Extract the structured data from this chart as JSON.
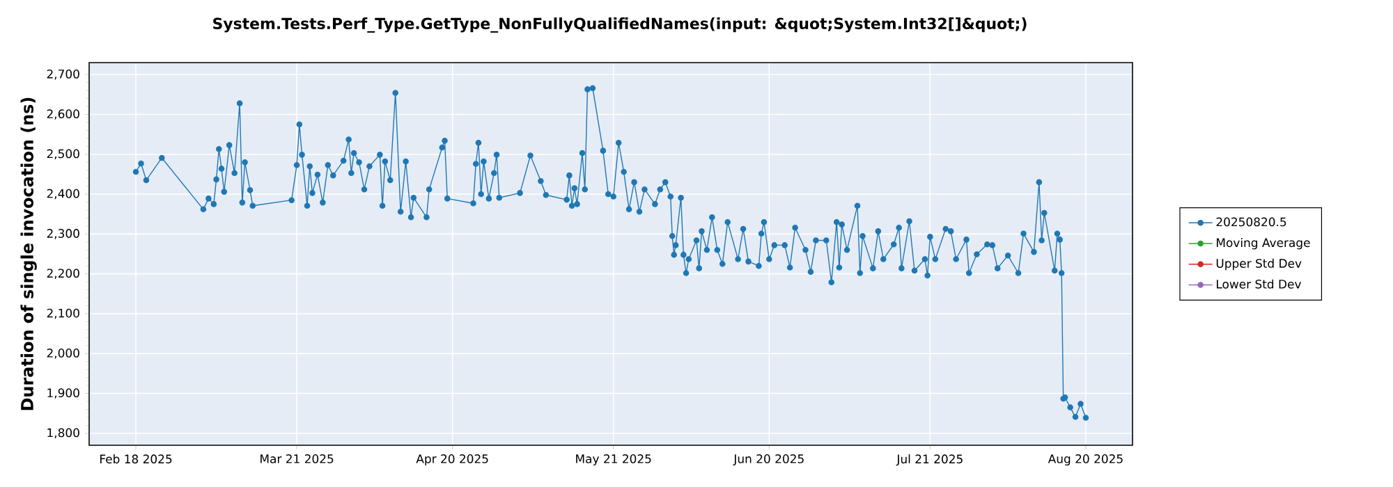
{
  "chart_data": {
    "type": "line",
    "title": "System.Tests.Perf_Type.GetType_NonFullyQualifiedNames(input: &quot;System.Int32[]&quot;)",
    "ylabel": "Duration of single invocation (ns)",
    "xlim": [
      "2025-02-09",
      "2025-08-29"
    ],
    "ylim": [
      1770,
      2730
    ],
    "xticks": [
      {
        "value": "2025-02-18",
        "label": "Feb 18 2025"
      },
      {
        "value": "2025-03-21",
        "label": "Mar 21 2025"
      },
      {
        "value": "2025-04-20",
        "label": "Apr 20 2025"
      },
      {
        "value": "2025-05-21",
        "label": "May 21 2025"
      },
      {
        "value": "2025-06-20",
        "label": "Jun 20 2025"
      },
      {
        "value": "2025-07-21",
        "label": "Jul 21 2025"
      },
      {
        "value": "2025-08-20",
        "label": "Aug 20 2025"
      }
    ],
    "yticks": [
      {
        "value": 1800,
        "label": "1,800"
      },
      {
        "value": 1900,
        "label": "1,900"
      },
      {
        "value": 2000,
        "label": "2,000"
      },
      {
        "value": 2100,
        "label": "2,100"
      },
      {
        "value": 2200,
        "label": "2,200"
      },
      {
        "value": 2300,
        "label": "2,300"
      },
      {
        "value": 2400,
        "label": "2,400"
      },
      {
        "value": 2500,
        "label": "2,500"
      },
      {
        "value": 2600,
        "label": "2,600"
      },
      {
        "value": 2700,
        "label": "2,700"
      }
    ],
    "grid": true,
    "legend": "right",
    "marker": "circle",
    "line_style": "solid",
    "series": [
      {
        "name": "20250820.5",
        "color": "#1f77b4",
        "x": [
          "2025-02-18",
          "2025-02-19",
          "2025-02-20",
          "2025-02-23",
          "2025-03-03",
          "2025-03-04",
          "2025-03-05",
          "2025-03-05T12:00",
          "2025-03-06",
          "2025-03-06T12:00",
          "2025-03-07",
          "2025-03-08",
          "2025-03-09",
          "2025-03-10",
          "2025-03-10T12:00",
          "2025-03-11",
          "2025-03-12",
          "2025-03-12T12:00",
          "2025-03-20",
          "2025-03-21",
          "2025-03-21T12:00",
          "2025-03-22",
          "2025-03-23",
          "2025-03-23T12:00",
          "2025-03-24",
          "2025-03-25",
          "2025-03-26",
          "2025-03-27",
          "2025-03-28",
          "2025-03-30",
          "2025-03-31",
          "2025-03-31T12:00",
          "2025-04-01",
          "2025-04-02",
          "2025-04-03",
          "2025-04-04",
          "2025-04-06",
          "2025-04-06T12:00",
          "2025-04-07",
          "2025-04-08",
          "2025-04-09",
          "2025-04-10",
          "2025-04-11",
          "2025-04-12",
          "2025-04-12T12:00",
          "2025-04-15",
          "2025-04-15T12:00",
          "2025-04-18",
          "2025-04-18T12:00",
          "2025-04-19",
          "2025-04-24",
          "2025-04-24T12:00",
          "2025-04-25",
          "2025-04-25T12:00",
          "2025-04-26",
          "2025-04-27",
          "2025-04-28",
          "2025-04-28T12:00",
          "2025-04-29",
          "2025-05-03",
          "2025-05-05",
          "2025-05-07",
          "2025-05-08",
          "2025-05-12",
          "2025-05-12T12:00",
          "2025-05-13",
          "2025-05-13T12:00",
          "2025-05-14",
          "2025-05-15",
          "2025-05-15T12:00",
          "2025-05-16",
          "2025-05-17",
          "2025-05-19",
          "2025-05-20",
          "2025-05-21",
          "2025-05-22",
          "2025-05-23",
          "2025-05-24",
          "2025-05-25",
          "2025-05-26",
          "2025-05-27",
          "2025-05-29",
          "2025-05-30",
          "2025-05-31",
          "2025-06-01",
          "2025-06-01T08:00",
          "2025-06-01T16:00",
          "2025-06-02",
          "2025-06-03",
          "2025-06-03T12:00",
          "2025-06-04",
          "2025-06-04T12:00",
          "2025-06-06",
          "2025-06-06T12:00",
          "2025-06-07",
          "2025-06-08",
          "2025-06-09",
          "2025-06-10",
          "2025-06-11",
          "2025-06-12",
          "2025-06-14",
          "2025-06-15",
          "2025-06-16",
          "2025-06-18",
          "2025-06-18T12:00",
          "2025-06-19",
          "2025-06-20",
          "2025-06-21",
          "2025-06-23",
          "2025-06-24",
          "2025-06-25",
          "2025-06-27",
          "2025-06-28",
          "2025-06-29",
          "2025-07-01",
          "2025-07-02",
          "2025-07-03",
          "2025-07-03T12:00",
          "2025-07-04",
          "2025-07-05",
          "2025-07-07",
          "2025-07-07T12:00",
          "2025-07-08",
          "2025-07-10",
          "2025-07-11",
          "2025-07-12",
          "2025-07-14",
          "2025-07-15",
          "2025-07-15T12:00",
          "2025-07-17",
          "2025-07-18",
          "2025-07-20",
          "2025-07-20T12:00",
          "2025-07-21",
          "2025-07-22",
          "2025-07-24",
          "2025-07-25",
          "2025-07-26",
          "2025-07-28",
          "2025-07-28T12:00",
          "2025-07-30",
          "2025-08-01",
          "2025-08-02",
          "2025-08-03",
          "2025-08-05",
          "2025-08-07",
          "2025-08-08",
          "2025-08-10",
          "2025-08-11",
          "2025-08-11T12:00",
          "2025-08-12",
          "2025-08-14",
          "2025-08-14T12:00",
          "2025-08-15",
          "2025-08-15T08:00",
          "2025-08-15T16:00",
          "2025-08-16",
          "2025-08-17",
          "2025-08-18",
          "2025-08-19",
          "2025-08-20"
        ],
        "values": [
          2456,
          2477,
          2435,
          2491,
          2362,
          2389,
          2375,
          2437,
          2513,
          2464,
          2406,
          2523,
          2453,
          2628,
          2379,
          2480,
          2410,
          2371,
          2385,
          2473,
          2575,
          2499,
          2371,
          2470,
          2403,
          2449,
          2379,
          2473,
          2447,
          2484,
          2537,
          2453,
          2503,
          2480,
          2412,
          2470,
          2499,
          2371,
          2482,
          2435,
          2654,
          2356,
          2482,
          2342,
          2391,
          2342,
          2412,
          2517,
          2534,
          2389,
          2377,
          2476,
          2529,
          2400,
          2482,
          2389,
          2453,
          2499,
          2391,
          2403,
          2497,
          2433,
          2398,
          2386,
          2447,
          2371,
          2415,
          2375,
          2503,
          2412,
          2663,
          2666,
          2509,
          2400,
          2394,
          2529,
          2456,
          2362,
          2430,
          2356,
          2412,
          2375,
          2412,
          2430,
          2394,
          2295,
          2248,
          2272,
          2391,
          2248,
          2202,
          2237,
          2284,
          2214,
          2307,
          2260,
          2342,
          2260,
          2225,
          2330,
          2237,
          2313,
          2231,
          2220,
          2301,
          2330,
          2237,
          2272,
          2272,
          2216,
          2316,
          2260,
          2205,
          2284,
          2284,
          2179,
          2330,
          2216,
          2324,
          2260,
          2371,
          2202,
          2295,
          2214,
          2307,
          2237,
          2274,
          2316,
          2214,
          2332,
          2208,
          2237,
          2196,
          2293,
          2237,
          2313,
          2307,
          2237,
          2286,
          2202,
          2249,
          2274,
          2272,
          2214,
          2246,
          2202,
          2301,
          2255,
          2430,
          2284,
          2353,
          2208,
          2301,
          2286,
          2202,
          1887,
          1890,
          1865,
          1841,
          1874,
          1839
        ]
      },
      {
        "name": "Moving Average",
        "color": "#2ca02c"
      },
      {
        "name": "Upper Std Dev",
        "color": "#d62728"
      },
      {
        "name": "Lower Std Dev",
        "color": "#9467bd"
      }
    ]
  }
}
